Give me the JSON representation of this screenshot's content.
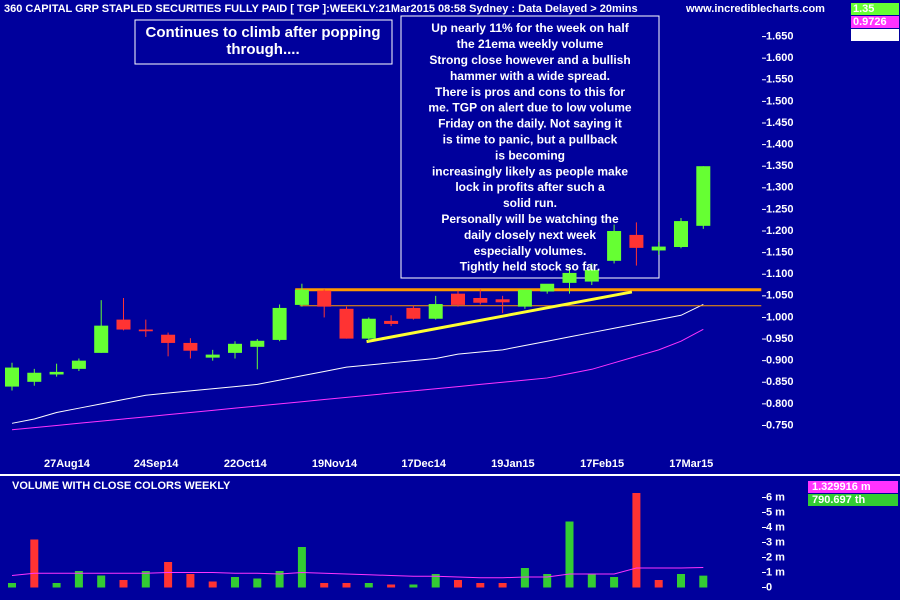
{
  "chart_data": [
    {
      "type": "candlestick",
      "title": "360 CAPITAL GRP STAPLED SECURITIES FULLY PAID [ TGP ]:WEEKLY:21Mar2015 08:58 Sydney : Data Delayed > 20mins",
      "source": "www.incrediblecharts.com",
      "categories": [
        null,
        null,
        null,
        "27Aug14",
        null,
        null,
        null,
        "24Sep14",
        null,
        null,
        null,
        "22Oct14",
        null,
        null,
        null,
        "19Nov14",
        null,
        null,
        null,
        "17Dec14",
        null,
        null,
        null,
        "19Jan15",
        null,
        null,
        null,
        "17Feb15",
        null,
        null,
        null,
        "17Mar15"
      ],
      "open": [
        0.84,
        0.851,
        0.868,
        0.881,
        0.918,
        0.995,
        0.972,
        0.96,
        0.941,
        0.907,
        0.918,
        0.932,
        0.948,
        1.029,
        1.062,
        1.02,
        0.951,
        0.992,
        1.022,
        0.997,
        1.055,
        1.045,
        1.042,
        1.025,
        1.06,
        1.08,
        1.083,
        1.131,
        1.191,
        1.155,
        1.163,
        1.212
      ],
      "high": [
        0.895,
        0.881,
        0.893,
        0.905,
        1.04,
        1.045,
        0.995,
        0.965,
        0.952,
        0.925,
        0.945,
        0.95,
        1.03,
        1.078,
        1.065,
        1.025,
        1.0,
        1.005,
        1.027,
        1.05,
        1.062,
        1.065,
        1.05,
        1.06,
        1.075,
        1.12,
        1.125,
        1.215,
        1.22,
        1.175,
        1.23,
        1.35
      ],
      "low": [
        0.831,
        0.842,
        0.863,
        0.876,
        0.918,
        0.97,
        0.955,
        0.91,
        0.905,
        0.9,
        0.905,
        0.88,
        0.945,
        1.025,
        1.0,
        0.951,
        0.945,
        0.98,
        0.995,
        0.995,
        1.025,
        1.03,
        1.01,
        1.02,
        1.055,
        1.055,
        1.075,
        1.125,
        1.12,
        1.145,
        1.16,
        1.205
      ],
      "close": [
        0.884,
        0.872,
        0.874,
        0.9,
        0.981,
        0.972,
        0.968,
        0.941,
        0.923,
        0.914,
        0.939,
        0.946,
        1.022,
        1.064,
        1.025,
        0.951,
        0.997,
        0.985,
        0.997,
        1.031,
        1.029,
        1.034,
        1.035,
        1.064,
        1.078,
        1.103,
        1.11,
        1.2,
        1.161,
        1.164,
        1.223,
        1.35
      ],
      "up_color": "#66ff33",
      "down_color": "#ff3333",
      "readout_color": "#66ff33",
      "lines": [
        {
          "color": "#ffffff",
          "values": [
            0.755,
            0.765,
            0.78,
            0.79,
            0.8,
            0.81,
            0.82,
            0.825,
            0.83,
            0.835,
            0.84,
            0.845,
            0.855,
            0.865,
            0.875,
            0.885,
            0.89,
            0.895,
            0.9,
            0.905,
            0.915,
            0.92,
            0.925,
            0.935,
            0.945,
            0.955,
            0.965,
            0.975,
            0.985,
            0.995,
            1.005,
            1.030122
          ]
        },
        {
          "color": "#ff33ff",
          "values": [
            0.74,
            0.745,
            0.75,
            0.755,
            0.76,
            0.765,
            0.77,
            0.775,
            0.78,
            0.785,
            0.79,
            0.795,
            0.8,
            0.805,
            0.81,
            0.815,
            0.82,
            0.825,
            0.83,
            0.835,
            0.84,
            0.845,
            0.85,
            0.855,
            0.86,
            0.87,
            0.88,
            0.895,
            0.91,
            0.925,
            0.945,
            0.9726
          ]
        }
      ],
      "trendlines": [
        {
          "color": "#ff9900",
          "start": 12.7,
          "end": 33.6,
          "values": [
            1.064,
            1.064
          ]
        },
        {
          "color": "#ff9900",
          "start": 12.9,
          "end": 33.6,
          "values": [
            1.027,
            1.027
          ]
        },
        {
          "color": "#ffff33",
          "start": 15.9,
          "end": 27.8,
          "values": [
            0.944,
            1.059
          ]
        }
      ],
      "annotations": [
        [
          "Continues to climb after popping",
          "through...."
        ],
        [
          "Up nearly 11% for the week on half",
          "the 21ema weekly volume",
          "Strong close however and a bullish",
          "hammer with a wide spread.",
          "There is pros and cons to this for",
          "me. TGP on alert due to low volume",
          "Friday on the daily. Not saying it",
          "is time to panic, but a pullback",
          "is becoming",
          "increasingly likely as people make",
          "lock in profits after such a",
          "solid run.",
          "Personally will be watching the",
          "daily closely next week",
          "especially volumes.",
          "Tightly held stock so far."
        ]
      ],
      "ylim": [
        0.64,
        1.73
      ],
      "yticks": [
        {
          "value": 0.75,
          "label": "0.750"
        },
        {
          "value": 0.8,
          "label": "0.800"
        },
        {
          "value": 0.85,
          "label": "0.850"
        },
        {
          "value": 0.9,
          "label": "0.900"
        },
        {
          "value": 0.95,
          "label": "0.950"
        },
        {
          "value": 1.0,
          "label": "1.000"
        },
        {
          "value": 1.05,
          "label": "1.050"
        },
        {
          "value": 1.1,
          "label": "1.100"
        },
        {
          "value": 1.15,
          "label": "1.150"
        },
        {
          "value": 1.2,
          "label": "1.200"
        },
        {
          "value": 1.25,
          "label": "1.250"
        },
        {
          "value": 1.3,
          "label": "1.300"
        },
        {
          "value": 1.35,
          "label": "1.350"
        },
        {
          "value": 1.4,
          "label": "1.400"
        },
        {
          "value": 1.45,
          "label": "1.450"
        },
        {
          "value": 1.5,
          "label": "1.500"
        },
        {
          "value": 1.55,
          "label": "1.550"
        },
        {
          "value": 1.6,
          "label": "1.600"
        },
        {
          "value": 1.65,
          "label": "1.650"
        }
      ]
    },
    {
      "type": "bar",
      "title": "VOLUME WITH CLOSE COLORS WEEKLY",
      "values": [
        0.3,
        3.2,
        0.3,
        1.1,
        0.8,
        0.5,
        1.1,
        1.7,
        0.9,
        0.4,
        0.7,
        0.6,
        1.1,
        2.7,
        0.3,
        0.3,
        0.3,
        0.2,
        0.2,
        0.9,
        0.5,
        0.3,
        0.3,
        1.3,
        0.9,
        4.4,
        0.9,
        0.7,
        6.3,
        0.5,
        0.9,
        0.790697
      ],
      "value_labels": [
        null,
        null,
        null,
        null,
        null,
        null,
        null,
        null,
        null,
        null,
        null,
        null,
        null,
        null,
        null,
        null,
        null,
        null,
        null,
        null,
        null,
        null,
        null,
        null,
        null,
        null,
        null,
        null,
        null,
        null,
        null,
        "790.697 th"
      ],
      "colors": [
        "#33cc33",
        "#ff3333",
        "#33cc33",
        "#33cc33",
        "#33cc33",
        "#ff3333",
        "#33cc33",
        "#ff3333",
        "#ff3333",
        "#ff3333",
        "#33cc33",
        "#33cc33",
        "#33cc33",
        "#33cc33",
        "#ff3333",
        "#ff3333",
        "#33cc33",
        "#ff3333",
        "#33cc33",
        "#33cc33",
        "#ff3333",
        "#ff3333",
        "#ff3333",
        "#33cc33",
        "#33cc33",
        "#33cc33",
        "#33cc33",
        "#33cc33",
        "#ff3333",
        "#ff3333",
        "#33cc33",
        "#33cc33"
      ],
      "line": {
        "color": "#ff33ff",
        "values": [
          0.8,
          0.95,
          0.95,
          0.95,
          0.95,
          0.95,
          0.95,
          1.0,
          1.0,
          1.0,
          0.95,
          0.95,
          0.9,
          1.0,
          0.95,
          0.9,
          0.85,
          0.8,
          0.75,
          0.75,
          0.7,
          0.65,
          0.65,
          0.7,
          0.7,
          0.9,
          0.9,
          0.9,
          1.3,
          1.3,
          1.3,
          1.329916
        ],
        "value_labels": [
          null,
          null,
          null,
          null,
          null,
          null,
          null,
          null,
          null,
          null,
          null,
          null,
          null,
          null,
          null,
          null,
          null,
          null,
          null,
          null,
          null,
          null,
          null,
          null,
          null,
          null,
          null,
          null,
          null,
          null,
          null,
          "1.329916 m"
        ]
      },
      "ylim": [
        -0.7,
        7.3
      ],
      "yticks": [
        0,
        {
          "value": 1,
          "label": "1 m"
        },
        {
          "value": 2,
          "label": "2 m"
        },
        {
          "value": 3,
          "label": "3 m"
        },
        {
          "value": 4,
          "label": "4 m"
        },
        {
          "value": 5,
          "label": "5 m"
        },
        {
          "value": 6,
          "label": "6 m"
        }
      ]
    }
  ]
}
